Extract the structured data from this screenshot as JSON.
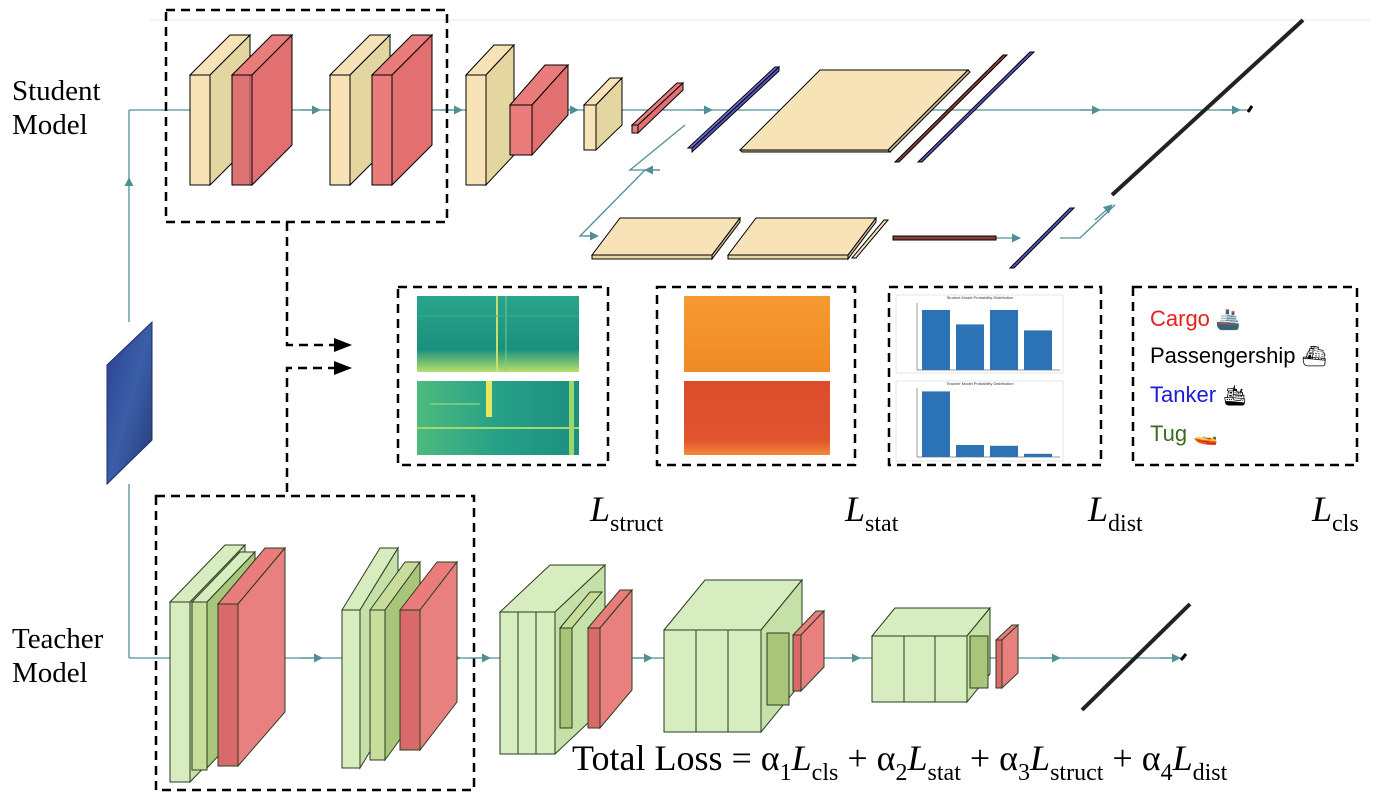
{
  "labels": {
    "student": [
      "Student",
      "Model"
    ],
    "teacher": [
      "Teacher",
      "Model"
    ]
  },
  "losses": {
    "struct": {
      "main": "L",
      "sub": "struct"
    },
    "stat": {
      "main": "L",
      "sub": "stat"
    },
    "dist": {
      "main": "L",
      "sub": "dist"
    },
    "cls": {
      "main": "L",
      "sub": "cls"
    }
  },
  "legend": [
    {
      "label": "Cargo",
      "color": "#e8201a",
      "icon": "cargo-ship-icon",
      "glyph": "🚢"
    },
    {
      "label": "Passengership",
      "color": "#000000",
      "icon": "passenger-ship-icon",
      "glyph": "⛴"
    },
    {
      "label": "Tanker",
      "color": "#1a1ad8",
      "icon": "tanker-icon",
      "glyph": "🛳"
    },
    {
      "label": "Tug",
      "color": "#3a6e1e",
      "icon": "tug-icon",
      "glyph": "🚤"
    }
  ],
  "total_loss": {
    "prefix": "Total Loss = α",
    "terms": [
      {
        "coef": "1",
        "main": "L",
        "sub": "cls"
      },
      {
        "coef": "2",
        "main": "L",
        "sub": "stat"
      },
      {
        "coef": "3",
        "main": "L",
        "sub": "struct"
      },
      {
        "coef": "4",
        "main": "L",
        "sub": "dist"
      }
    ]
  },
  "bar_charts": {
    "student": {
      "title": "Student Model Probability Distribution",
      "values": [
        0.5,
        0.38,
        0.5,
        0.33
      ]
    },
    "teacher": {
      "title": "Teacher Model Probability Distribution",
      "values": [
        0.82,
        0.15,
        0.14,
        0.04
      ]
    }
  },
  "colors": {
    "student_conv": "#f8e3b8",
    "student_pool": "#ea7c7c",
    "student_fc": "#7070d8",
    "teacher_conv": "#d7ecbf",
    "teacher_pool": "#ea7c7c",
    "bar": "#2c73b5",
    "arrow": "#4f8f96"
  }
}
